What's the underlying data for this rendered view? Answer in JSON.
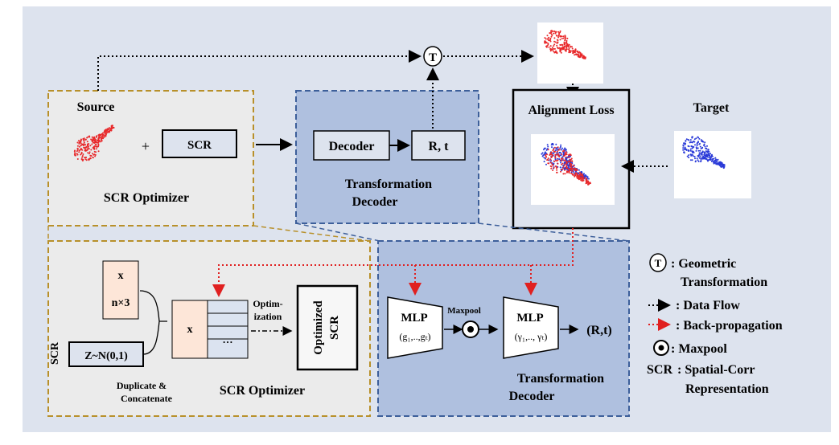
{
  "top": {
    "source_label": "Source",
    "plus": "+",
    "scr_label": "SCR",
    "scr_optimizer_label": "SCR Optimizer",
    "decoder_label": "Decoder",
    "rt_label": "R, t",
    "transformation_decoder_line1": "Transformation",
    "transformation_decoder_line2": "Decoder",
    "t_symbol": "T",
    "alignment_loss_label": "Alignment Loss",
    "target_label": "Target"
  },
  "bottom": {
    "scr_side_label": "SCR",
    "x_label": "x",
    "n3_label": "n×3",
    "z_label": "Z~N(0,1)",
    "dup_line1": "Duplicate &",
    "dup_line2": "Concatenate",
    "x_concat_label": "x",
    "ellipsis": "…",
    "optim_line1": "Optim-",
    "optim_line2": "ization",
    "optimized_scr_line1": "Optimized",
    "optimized_scr_line2": "SCR",
    "scr_optimizer_label": "SCR Optimizer",
    "mlp1_label": "MLP",
    "mlp1_sub": "(g₁,..,gₜ)",
    "maxpool_label": "Maxpool",
    "mlp2_label": "MLP",
    "mlp2_sub": "(γ₁,.., γₜ)",
    "output_label": "(R,t)",
    "transformation_decoder_line1": "Transformation",
    "transformation_decoder_line2": "Decoder"
  },
  "legend": {
    "t_symbol": "T",
    "geo_line1": ": Geometric",
    "geo_line2": "Transformation",
    "data_flow": ": Data Flow",
    "back_prop": ": Back-propagation",
    "maxpool": ": Maxpool",
    "scr_key": "SCR",
    "scr_line1": ": Spatial-Corr",
    "scr_line2": "Representation"
  },
  "colors": {
    "background": "#dde3ee",
    "gold_dash": "#b8902a",
    "blue_dash": "#3d5f9a",
    "decoder_fill": "#afc0df",
    "gray_panel": "#ebebeb",
    "peach": "#fde6d8",
    "red_points": "#e8282a",
    "blue_points": "#2a3ad8",
    "back_prop": "#e02020"
  }
}
